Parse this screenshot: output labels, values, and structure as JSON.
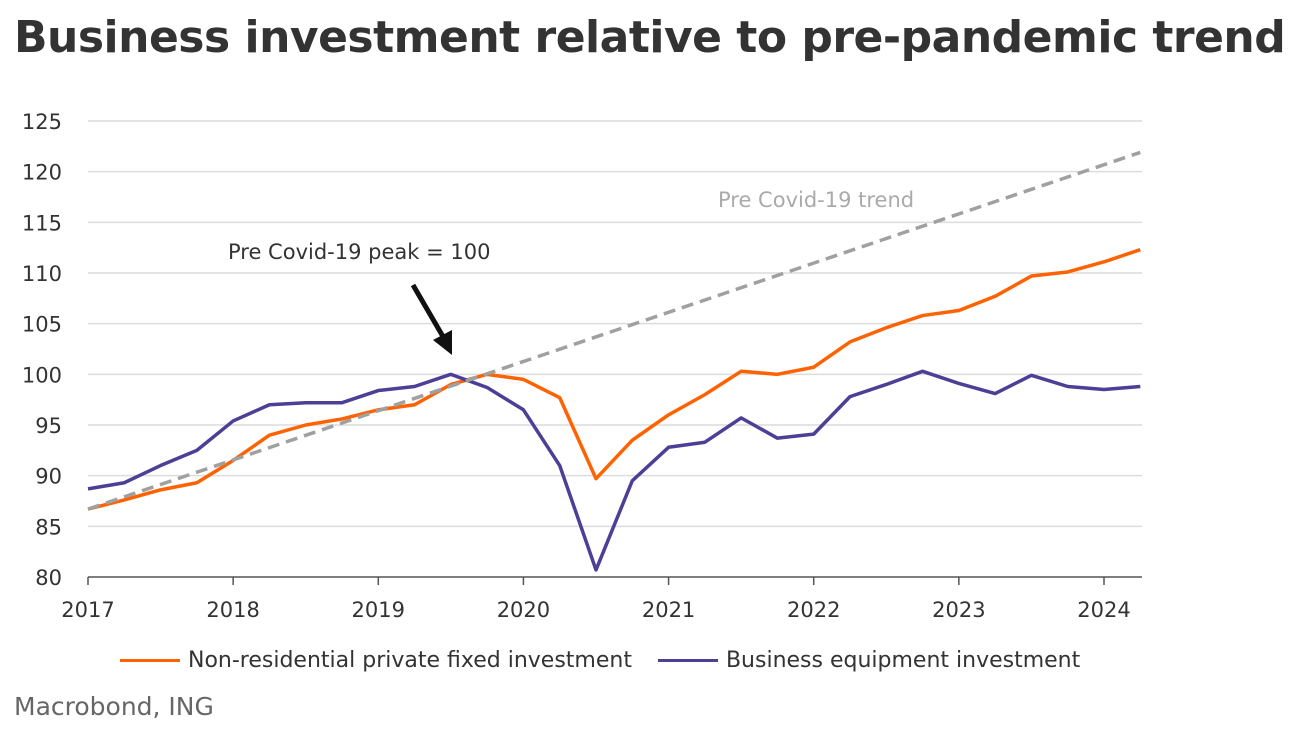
{
  "chart_data": {
    "type": "line",
    "title": "Business investment relative to pre-pandemic trend",
    "xlabel": "",
    "ylabel": "",
    "ylim": [
      80,
      125
    ],
    "xlim": [
      2017,
      2024.35
    ],
    "yticks": [
      80,
      85,
      90,
      95,
      100,
      105,
      110,
      115,
      120,
      125
    ],
    "xticks": [
      2017,
      2018,
      2019,
      2020,
      2021,
      2022,
      2023,
      2024
    ],
    "grid": "horizontal",
    "legend": "bottom",
    "x": [
      2017.0,
      2017.25,
      2017.5,
      2017.75,
      2018.0,
      2018.25,
      2018.5,
      2018.75,
      2019.0,
      2019.25,
      2019.5,
      2019.75,
      2020.0,
      2020.25,
      2020.5,
      2020.75,
      2021.0,
      2021.25,
      2021.5,
      2021.75,
      2022.0,
      2022.25,
      2022.5,
      2022.75,
      2023.0,
      2023.25,
      2023.5,
      2023.75,
      2024.0,
      2024.25
    ],
    "series": [
      {
        "name": "Non-residential private fixed investment",
        "color": "#FF6200",
        "style": "solid",
        "values": [
          86.7,
          87.6,
          88.6,
          89.3,
          91.5,
          94.0,
          95.0,
          95.6,
          96.5,
          97.0,
          99.0,
          100.0,
          99.5,
          97.7,
          89.7,
          93.5,
          96.0,
          98.0,
          100.3,
          100.0,
          100.7,
          103.2,
          104.6,
          105.8,
          106.3,
          107.7,
          109.7,
          110.1,
          111.1,
          112.3
        ]
      },
      {
        "name": "Business equipment investment",
        "color": "#4B3F96",
        "style": "solid",
        "values": [
          88.7,
          89.3,
          91.0,
          92.5,
          95.4,
          97.0,
          97.2,
          97.2,
          98.4,
          98.8,
          100.0,
          98.7,
          96.5,
          91.0,
          80.7,
          89.5,
          92.8,
          93.3,
          95.7,
          93.7,
          94.1,
          97.8,
          99.0,
          100.3,
          99.1,
          98.1,
          99.9,
          98.8,
          98.5,
          98.8
        ]
      },
      {
        "color": "#A0A0A0",
        "style": "dashed",
        "trend": true,
        "x": [
          2017.0,
          2024.25
        ],
        "values": [
          86.7,
          121.9
        ]
      }
    ],
    "annotations": [
      {
        "text": "Pre Covid-19 trend",
        "color": "#AAAAAA"
      },
      {
        "text": "Pre Covid-19 peak = 100",
        "color": "#333333",
        "arrow_to": [
          2019.5,
          100
        ]
      }
    ]
  },
  "source": "Macrobond, ING"
}
